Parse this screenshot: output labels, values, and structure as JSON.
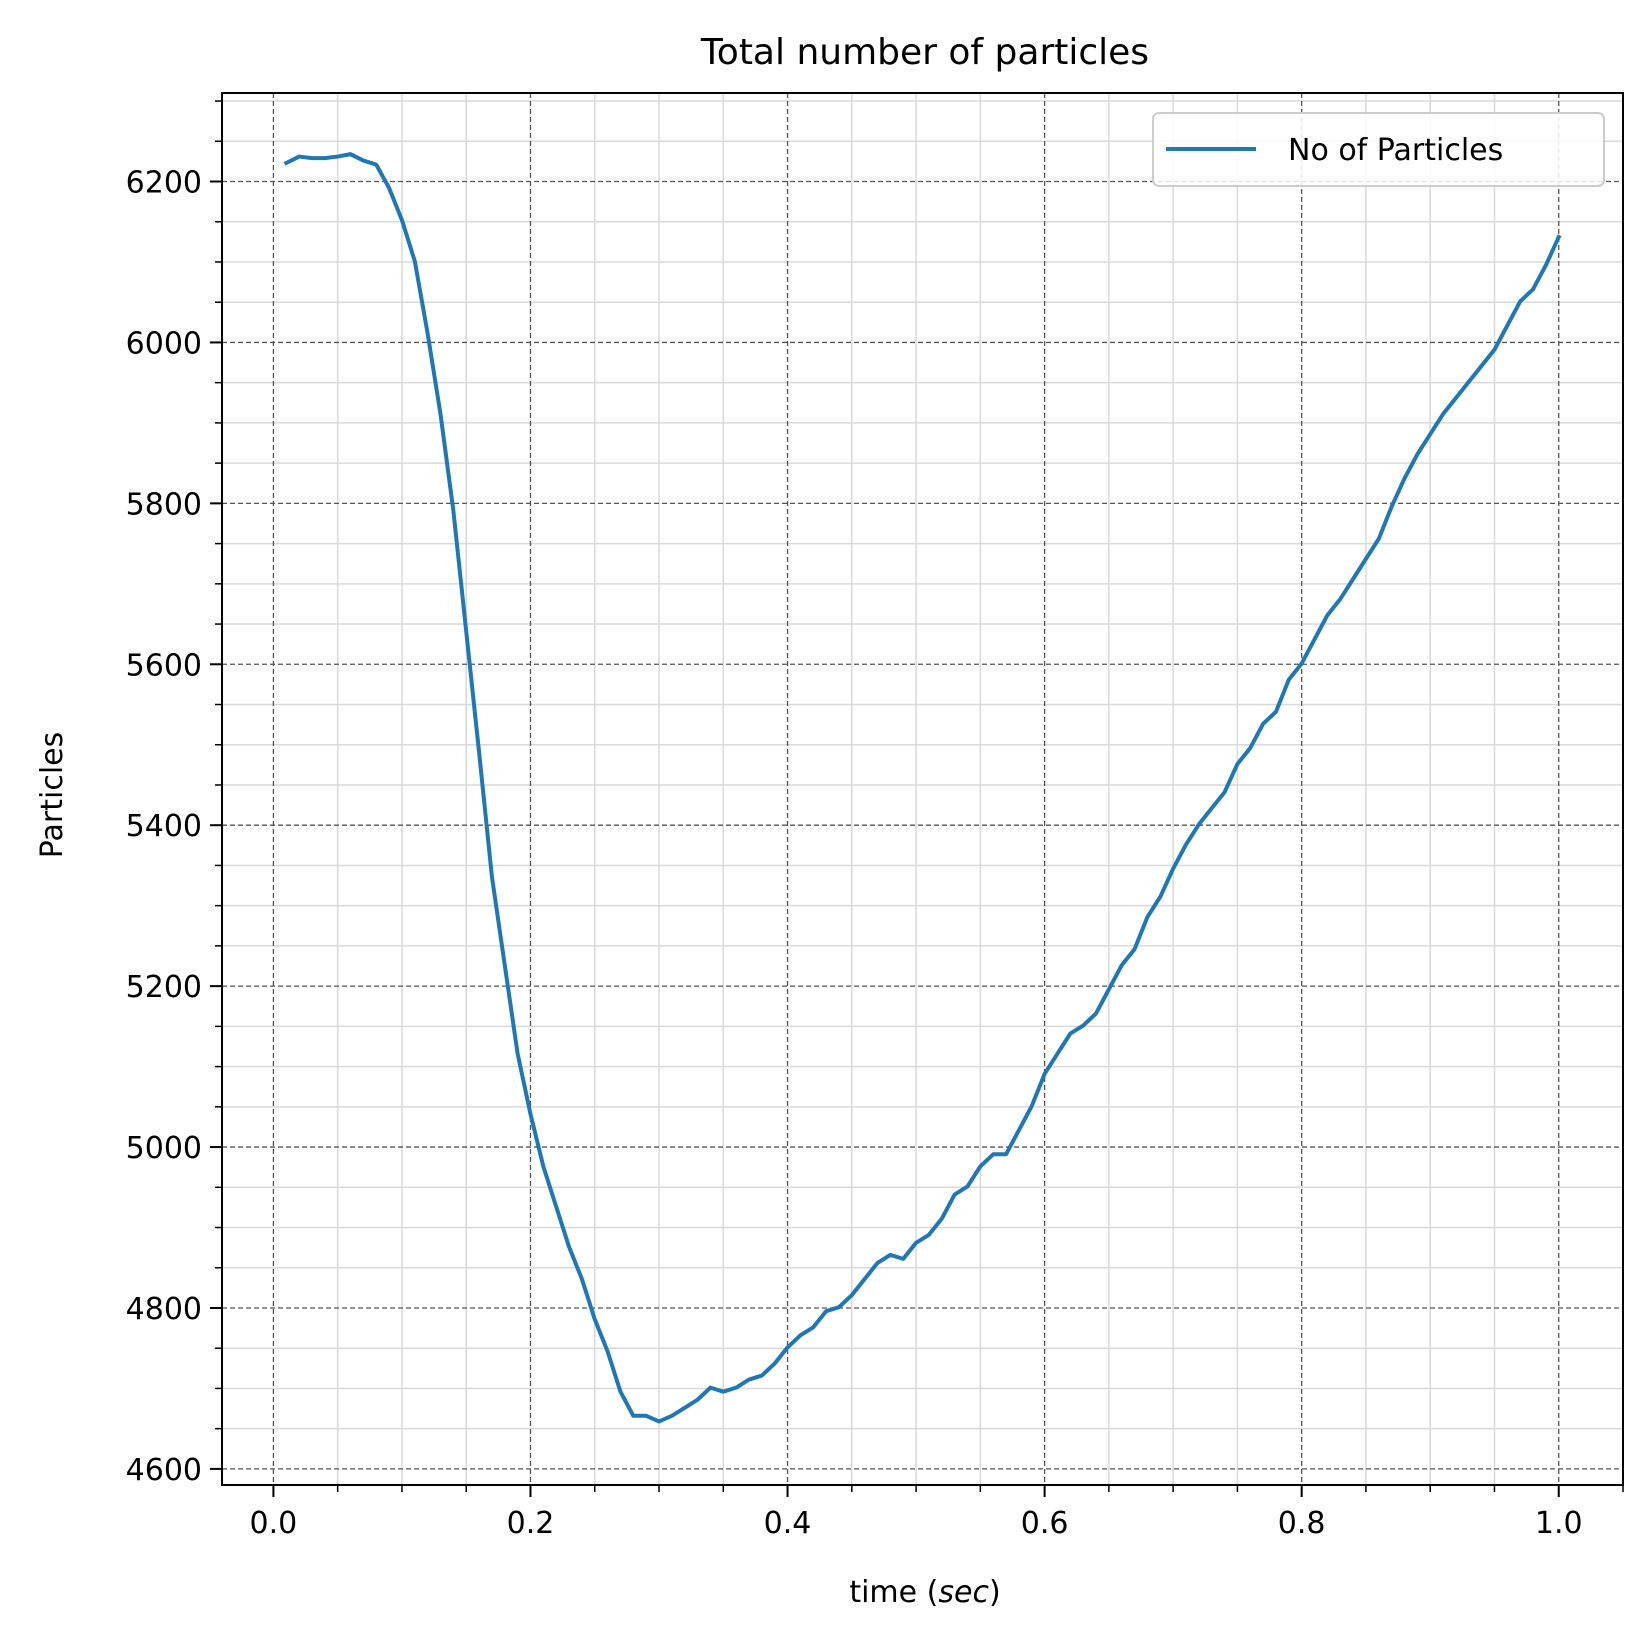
{
  "chart_data": {
    "type": "line",
    "title": "Total number of particles",
    "xlabel_main": "time (",
    "xlabel_italic": "sec",
    "xlabel_close": ")",
    "ylabel": "Particles",
    "xlim": [
      -0.04,
      1.05
    ],
    "ylim": [
      4580,
      6310
    ],
    "xticks": [
      0.0,
      0.2,
      0.4,
      0.6,
      0.8,
      1.0
    ],
    "xtick_labels": [
      "0.0",
      "0.2",
      "0.4",
      "0.6",
      "0.8",
      "1.0"
    ],
    "yticks": [
      4600,
      4800,
      5000,
      5200,
      5400,
      5600,
      5800,
      6000,
      6200
    ],
    "ytick_labels": [
      "4600",
      "4800",
      "5000",
      "5200",
      "5400",
      "5600",
      "5800",
      "6000",
      "6200"
    ],
    "x_minor_step": 0.05,
    "y_minor_step": 50,
    "grid": {
      "major": true,
      "minor": true,
      "major_style": "dashed"
    },
    "legend": {
      "position": "top-right"
    },
    "series": [
      {
        "name": "No of Particles",
        "color": "#1f77b4",
        "x": [
          0.01,
          0.02,
          0.03,
          0.04,
          0.05,
          0.06,
          0.07,
          0.08,
          0.09,
          0.1,
          0.11,
          0.12,
          0.13,
          0.14,
          0.15,
          0.16,
          0.17,
          0.18,
          0.19,
          0.2,
          0.21,
          0.22,
          0.23,
          0.24,
          0.25,
          0.26,
          0.27,
          0.28,
          0.29,
          0.3,
          0.31,
          0.32,
          0.33,
          0.34,
          0.35,
          0.36,
          0.37,
          0.38,
          0.39,
          0.4,
          0.41,
          0.42,
          0.43,
          0.44,
          0.45,
          0.46,
          0.47,
          0.48,
          0.49,
          0.5,
          0.51,
          0.52,
          0.53,
          0.54,
          0.55,
          0.56,
          0.57,
          0.58,
          0.59,
          0.6,
          0.61,
          0.62,
          0.63,
          0.64,
          0.65,
          0.66,
          0.67,
          0.68,
          0.69,
          0.7,
          0.71,
          0.72,
          0.73,
          0.74,
          0.75,
          0.76,
          0.77,
          0.78,
          0.79,
          0.8,
          0.81,
          0.82,
          0.83,
          0.84,
          0.85,
          0.86,
          0.87,
          0.88,
          0.89,
          0.9,
          0.91,
          0.92,
          0.93,
          0.94,
          0.95,
          0.96,
          0.97,
          0.98,
          0.99,
          1.0
        ],
        "values": [
          6223,
          6231,
          6229,
          6229,
          6231,
          6234,
          6226,
          6221,
          6192,
          6152,
          6101,
          6011,
          5911,
          5791,
          5641,
          5491,
          5336,
          5226,
          5116,
          5041,
          4976,
          4926,
          4876,
          4836,
          4786,
          4746,
          4696,
          4666,
          4666,
          4659,
          4666,
          4676,
          4686,
          4701,
          4696,
          4701,
          4711,
          4716,
          4731,
          4751,
          4766,
          4776,
          4796,
          4801,
          4816,
          4836,
          4856,
          4866,
          4861,
          4881,
          4891,
          4911,
          4941,
          4951,
          4976,
          4991,
          4991,
          5021,
          5051,
          5091,
          5116,
          5141,
          5151,
          5166,
          5196,
          5226,
          5246,
          5286,
          5311,
          5346,
          5376,
          5401,
          5421,
          5441,
          5476,
          5496,
          5526,
          5541,
          5581,
          5601,
          5631,
          5661,
          5681,
          5706,
          5731,
          5756,
          5796,
          5831,
          5861,
          5886,
          5911,
          5931,
          5951,
          5971,
          5991,
          6021,
          6051,
          6066,
          6096,
          6131
        ]
      }
    ]
  }
}
